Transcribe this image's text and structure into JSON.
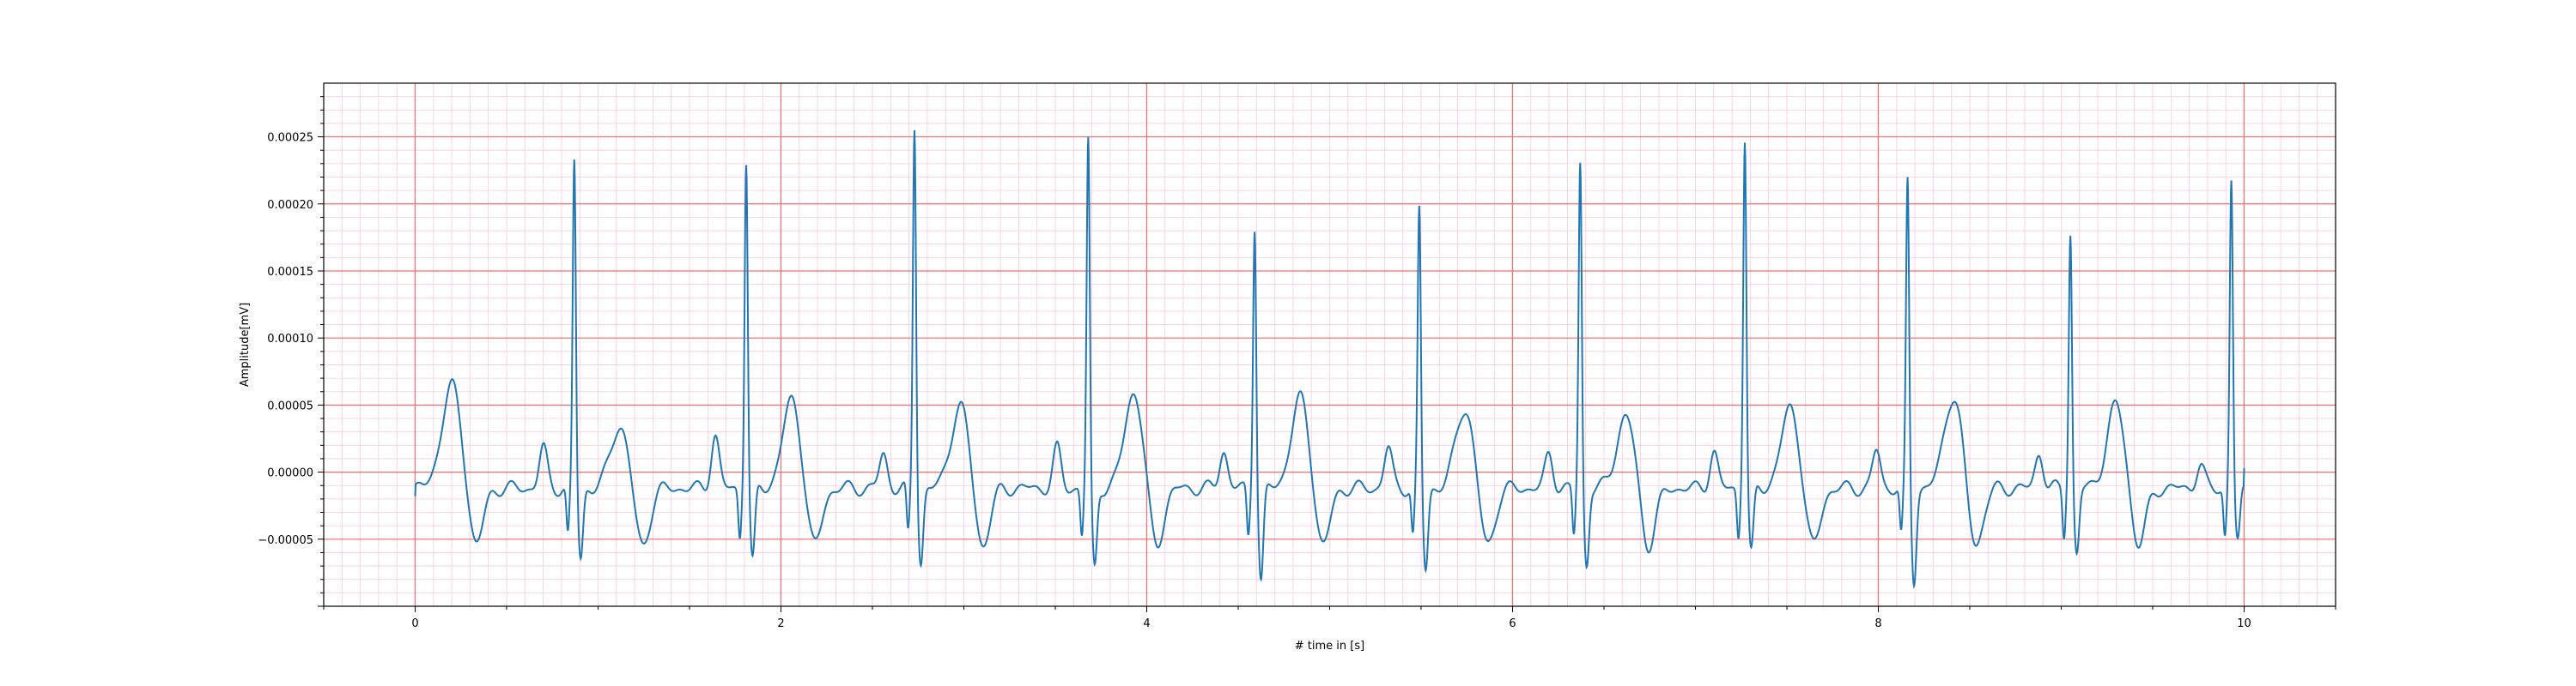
{
  "chart_data": {
    "type": "line",
    "title": "",
    "xlabel": "# time in [s]",
    "ylabel": "Amplitude[mV]",
    "xlim": [
      -0.5,
      10.5
    ],
    "ylim": [
      -0.0001,
      0.00029
    ],
    "grid": true,
    "legend": "none",
    "colors": {
      "line": "#1f77b4",
      "major_grid": "#ff6b6b",
      "minor_grid": "#ffc8dc"
    },
    "x_ticks": [
      0,
      2,
      4,
      6,
      8,
      10
    ],
    "x_tick_labels": [
      "0",
      "2",
      "4",
      "6",
      "8",
      "10"
    ],
    "y_ticks": [
      -5e-05,
      0,
      5e-05,
      0.0001,
      0.00015,
      0.0002,
      0.00025
    ],
    "y_tick_labels": [
      "−0.00005",
      "0.00000",
      "0.00005",
      "0.00010",
      "0.00015",
      "0.00020",
      "0.00025"
    ],
    "beats": [
      {
        "r_time": 0.87,
        "r_amp": 0.000245,
        "s_amp": -6.5e-05,
        "t_amp": 4.7e-05,
        "p_amp": 3e-05
      },
      {
        "r_time": 1.81,
        "r_amp": 0.000246,
        "s_amp": -6.7e-05,
        "t_amp": 6.6e-05,
        "p_amp": 3.9e-05
      },
      {
        "r_time": 2.73,
        "r_amp": 0.000271,
        "s_amp": -6.7e-05,
        "t_amp": 6.2e-05,
        "p_amp": 2.5e-05
      },
      {
        "r_time": 3.68,
        "r_amp": 0.000261,
        "s_amp": -7.2e-05,
        "t_amp": 7.2e-05,
        "p_amp": 2.9e-05
      },
      {
        "r_time": 4.59,
        "r_amp": 0.000199,
        "s_amp": -8.1e-05,
        "t_amp": 6.7e-05,
        "p_amp": 2.8e-05
      },
      {
        "r_time": 5.49,
        "r_amp": 0.000209,
        "s_amp": -7.3e-05,
        "t_amp": 6e-05,
        "p_amp": 3e-05
      },
      {
        "r_time": 6.37,
        "r_amp": 0.000244,
        "s_amp": -6.9e-05,
        "t_amp": 5.4e-05,
        "p_amp": 2.5e-05
      },
      {
        "r_time": 7.27,
        "r_amp": 0.000262,
        "s_amp": -6.1e-05,
        "t_amp": 6e-05,
        "p_amp": 2.7e-05
      },
      {
        "r_time": 8.16,
        "r_amp": 0.00023,
        "s_amp": -8.1e-05,
        "t_amp": 6.9e-05,
        "p_amp": 2.8e-05
      },
      {
        "r_time": 9.05,
        "r_amp": 0.000192,
        "s_amp": -6.1e-05,
        "t_amp": 6.2e-05,
        "p_amp": 2.6e-05
      },
      {
        "r_time": 9.93,
        "r_amp": 0.000231,
        "s_amp": -5.2e-05,
        "t_amp": 0,
        "p_amp": 1.7e-05
      }
    ],
    "initial_t_wave": {
      "time": 0.2,
      "amp": 7.6e-05
    },
    "signal_start": {
      "time": 0.0,
      "amp": -1.8e-05
    },
    "signal_end": {
      "time": 10.0,
      "amp": 3e-06
    }
  }
}
